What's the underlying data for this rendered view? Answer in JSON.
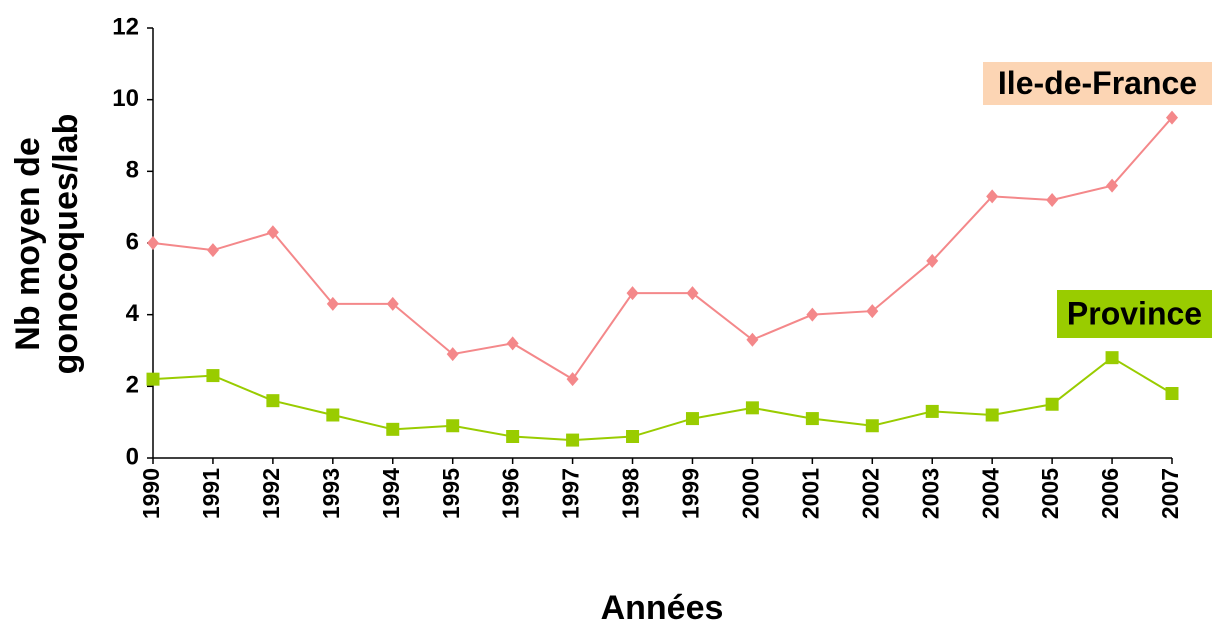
{
  "chart_data": {
    "type": "line",
    "y_label": [
      "Nb moyen de",
      "gonocoques/lab"
    ],
    "x_label": "Années",
    "categories": [
      "1990",
      "1991",
      "1992",
      "1993",
      "1994",
      "1995",
      "1996",
      "1997",
      "1998",
      "1999",
      "2000",
      "2001",
      "2002",
      "2003",
      "2004",
      "2005",
      "2006",
      "2007"
    ],
    "series": [
      {
        "name": "Ile-de-France",
        "color": "#f4888a",
        "label_background": "#fcd5b4",
        "marker": "diamond",
        "values": [
          6.0,
          5.8,
          6.3,
          4.3,
          4.3,
          2.9,
          3.2,
          2.2,
          4.6,
          4.6,
          3.3,
          4.0,
          4.1,
          5.5,
          7.3,
          7.2,
          7.6,
          9.5
        ]
      },
      {
        "name": "Province",
        "color": "#99cc00",
        "label_background": "#99cc00",
        "marker": "square",
        "values": [
          2.2,
          2.3,
          1.6,
          1.2,
          0.8,
          0.9,
          0.6,
          0.5,
          0.6,
          1.1,
          1.4,
          1.1,
          0.9,
          1.3,
          1.2,
          1.5,
          2.8,
          1.8
        ]
      }
    ],
    "ylim": [
      0,
      12
    ],
    "yticks": [
      0,
      2,
      4,
      6,
      8,
      10,
      12
    ],
    "grid": false
  }
}
